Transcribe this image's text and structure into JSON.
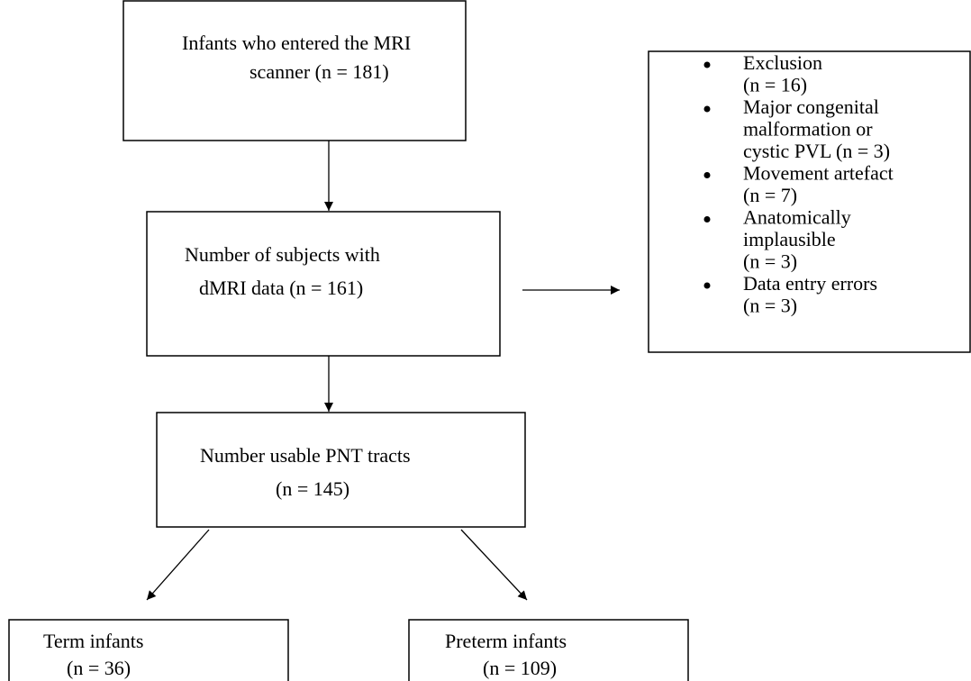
{
  "nodes": [
    {
      "lines": [
        "Infants who entered the MRI",
        "scanner (n = 181)"
      ]
    },
    {
      "lines": [
        "Number of subjects with",
        "dMRI data (n = 161)"
      ]
    },
    {
      "lines": [
        "Number usable PNT tracts",
        "(n = 145)"
      ]
    },
    {
      "lines": [
        "Term infants",
        "(n = 36)"
      ]
    },
    {
      "lines": [
        "Preterm infants",
        "(n = 109)"
      ]
    }
  ],
  "exclusions": {
    "items": [
      {
        "lines": [
          "Exclusion",
          "(n = 16)"
        ]
      },
      {
        "lines": [
          "Major congenital",
          "malformation or",
          "cystic PVL (n = 3)"
        ]
      },
      {
        "lines": [
          "Movement artefact",
          "(n = 7)"
        ]
      },
      {
        "lines": [
          "Anatomically",
          "implausible",
          "(n = 3)"
        ]
      },
      {
        "lines": [
          "Data entry errors",
          "(n = 3)"
        ]
      }
    ]
  }
}
